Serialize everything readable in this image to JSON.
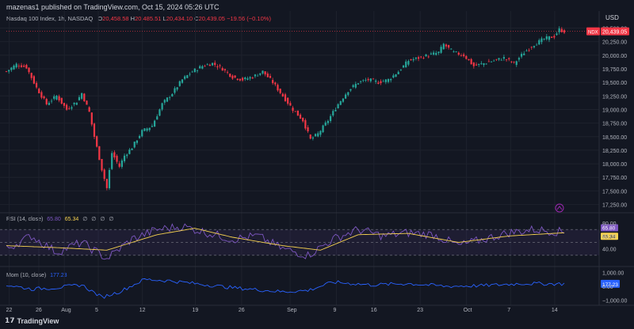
{
  "header": "mazenas1 published on TradingView.com, Oct 15, 2024 05:26 UTC",
  "currency": "USD",
  "symbol_tag": "NDX",
  "main_legend": {
    "title": "Nasdaq 100 Index, 1h, NASDAQ",
    "open_key": "O",
    "open": "20,458.58",
    "high_key": "H",
    "high": "20,485.51",
    "low_key": "L",
    "low": "20,434.10",
    "close_key": "C",
    "close": "20,439.05",
    "change": "−19.56 (−0.10%)"
  },
  "rsi_legend": {
    "title": "RSI (14, close)",
    "v1": "65.80",
    "v2": "65.34",
    "z1": "∅",
    "z2": "∅",
    "z3": "∅",
    "z4": "∅"
  },
  "mom_legend": {
    "title": "Mom (10, close)",
    "v1": "177.23"
  },
  "footer": {
    "brand": "TradingView"
  },
  "colors": {
    "up": "#26a69a",
    "down": "#f23645",
    "rsi": "#7e57c2",
    "rsi_ma": "#f7d250",
    "mom": "#2962ff",
    "bg": "#131722"
  },
  "chart_data": [
    {
      "type": "candlestick",
      "title": "Nasdaq 100 Index, 1h, NASDAQ",
      "x_tick_labels": [
        "22",
        "26",
        "Aug",
        "5",
        "12",
        "19",
        "26",
        "Sep",
        "9",
        "16",
        "23",
        "Oct",
        "7",
        "14"
      ],
      "y_tick_labels": [
        "20,500.00",
        "20,250.00",
        "20,000.00",
        "19,750.00",
        "19,500.00",
        "19,250.00",
        "19,000.00",
        "18,750.00",
        "18,500.00",
        "18,250.00",
        "18,000.00",
        "17,750.00",
        "17,500.00",
        "17,250.00"
      ],
      "ylim": [
        17200,
        20580
      ],
      "last_price": 20439.05,
      "last_price_label": "20,439.05",
      "path_keypoints": [
        {
          "i": 0,
          "v": 19700
        },
        {
          "i": 4,
          "v": 19830
        },
        {
          "i": 8,
          "v": 19780
        },
        {
          "i": 12,
          "v": 19400
        },
        {
          "i": 16,
          "v": 19100
        },
        {
          "i": 20,
          "v": 19250
        },
        {
          "i": 24,
          "v": 19000
        },
        {
          "i": 28,
          "v": 19150
        },
        {
          "i": 30,
          "v": 19300
        },
        {
          "i": 33,
          "v": 18950
        },
        {
          "i": 35,
          "v": 18500
        },
        {
          "i": 38,
          "v": 17900
        },
        {
          "i": 40,
          "v": 17550
        },
        {
          "i": 42,
          "v": 18200
        },
        {
          "i": 45,
          "v": 17950
        },
        {
          "i": 47,
          "v": 18150
        },
        {
          "i": 50,
          "v": 18300
        },
        {
          "i": 54,
          "v": 18600
        },
        {
          "i": 58,
          "v": 18700
        },
        {
          "i": 62,
          "v": 19100
        },
        {
          "i": 66,
          "v": 19300
        },
        {
          "i": 70,
          "v": 19550
        },
        {
          "i": 74,
          "v": 19700
        },
        {
          "i": 78,
          "v": 19800
        },
        {
          "i": 82,
          "v": 19850
        },
        {
          "i": 86,
          "v": 19750
        },
        {
          "i": 90,
          "v": 19600
        },
        {
          "i": 94,
          "v": 19550
        },
        {
          "i": 98,
          "v": 19600
        },
        {
          "i": 102,
          "v": 19700
        },
        {
          "i": 106,
          "v": 19500
        },
        {
          "i": 110,
          "v": 19250
        },
        {
          "i": 114,
          "v": 19000
        },
        {
          "i": 118,
          "v": 18800
        },
        {
          "i": 121,
          "v": 18450
        },
        {
          "i": 124,
          "v": 18550
        },
        {
          "i": 128,
          "v": 18800
        },
        {
          "i": 132,
          "v": 19100
        },
        {
          "i": 136,
          "v": 19350
        },
        {
          "i": 140,
          "v": 19500
        },
        {
          "i": 144,
          "v": 19550
        },
        {
          "i": 148,
          "v": 19500
        },
        {
          "i": 152,
          "v": 19550
        },
        {
          "i": 156,
          "v": 19700
        },
        {
          "i": 160,
          "v": 19900
        },
        {
          "i": 164,
          "v": 19950
        },
        {
          "i": 168,
          "v": 20000
        },
        {
          "i": 172,
          "v": 20050
        },
        {
          "i": 174,
          "v": 20200
        },
        {
          "i": 178,
          "v": 20050
        },
        {
          "i": 182,
          "v": 20000
        },
        {
          "i": 186,
          "v": 19800
        },
        {
          "i": 190,
          "v": 19850
        },
        {
          "i": 194,
          "v": 19900
        },
        {
          "i": 198,
          "v": 19950
        },
        {
          "i": 202,
          "v": 19850
        },
        {
          "i": 206,
          "v": 20050
        },
        {
          "i": 210,
          "v": 20200
        },
        {
          "i": 214,
          "v": 20300
        },
        {
          "i": 218,
          "v": 20350
        },
        {
          "i": 220,
          "v": 20470
        },
        {
          "i": 222,
          "v": 20440
        }
      ],
      "n_candles": 223
    },
    {
      "type": "line",
      "title": "RSI (14, close)",
      "y_tick_labels": [
        "80.00",
        "60.00",
        "40.00"
      ],
      "ylim": [
        20,
        85
      ],
      "bands": [
        70,
        50,
        30
      ],
      "series": [
        {
          "name": "RSI",
          "last_label": "65.80",
          "keypoints": [
            {
              "i": 0,
              "v": 40
            },
            {
              "i": 10,
              "v": 60
            },
            {
              "i": 20,
              "v": 35
            },
            {
              "i": 30,
              "v": 50
            },
            {
              "i": 40,
              "v": 25
            },
            {
              "i": 50,
              "v": 55
            },
            {
              "i": 60,
              "v": 70
            },
            {
              "i": 70,
              "v": 75
            },
            {
              "i": 80,
              "v": 65
            },
            {
              "i": 90,
              "v": 55
            },
            {
              "i": 100,
              "v": 60
            },
            {
              "i": 110,
              "v": 40
            },
            {
              "i": 120,
              "v": 30
            },
            {
              "i": 130,
              "v": 55
            },
            {
              "i": 140,
              "v": 70
            },
            {
              "i": 150,
              "v": 60
            },
            {
              "i": 160,
              "v": 65
            },
            {
              "i": 170,
              "v": 62
            },
            {
              "i": 180,
              "v": 45
            },
            {
              "i": 190,
              "v": 55
            },
            {
              "i": 200,
              "v": 65
            },
            {
              "i": 210,
              "v": 70
            },
            {
              "i": 222,
              "v": 66
            }
          ]
        },
        {
          "name": "RSI-based MA",
          "last_label": "65.34",
          "keypoints": [
            {
              "i": 0,
              "v": 45
            },
            {
              "i": 20,
              "v": 42
            },
            {
              "i": 40,
              "v": 38
            },
            {
              "i": 60,
              "v": 62
            },
            {
              "i": 75,
              "v": 72
            },
            {
              "i": 90,
              "v": 58
            },
            {
              "i": 110,
              "v": 45
            },
            {
              "i": 125,
              "v": 38
            },
            {
              "i": 140,
              "v": 62
            },
            {
              "i": 160,
              "v": 64
            },
            {
              "i": 180,
              "v": 50
            },
            {
              "i": 200,
              "v": 60
            },
            {
              "i": 222,
              "v": 65
            }
          ]
        }
      ]
    },
    {
      "type": "line",
      "title": "Mom (10, close)",
      "y_tick_labels": [
        "1,000.00",
        "0.00",
        "−1,000.00"
      ],
      "ylim": [
        -1150,
        1150
      ],
      "series": [
        {
          "name": "Mom",
          "last_label": "177.23",
          "keypoints": [
            {
              "i": 0,
              "v": 100
            },
            {
              "i": 10,
              "v": -200
            },
            {
              "i": 20,
              "v": -100
            },
            {
              "i": 30,
              "v": 100
            },
            {
              "i": 38,
              "v": -800
            },
            {
              "i": 45,
              "v": -400
            },
            {
              "i": 55,
              "v": 500
            },
            {
              "i": 65,
              "v": 400
            },
            {
              "i": 75,
              "v": 200
            },
            {
              "i": 90,
              "v": -100
            },
            {
              "i": 110,
              "v": -400
            },
            {
              "i": 120,
              "v": -300
            },
            {
              "i": 130,
              "v": 300
            },
            {
              "i": 145,
              "v": 100
            },
            {
              "i": 160,
              "v": 200
            },
            {
              "i": 175,
              "v": 0
            },
            {
              "i": 190,
              "v": 50
            },
            {
              "i": 205,
              "v": 200
            },
            {
              "i": 222,
              "v": 177
            }
          ]
        }
      ]
    }
  ]
}
